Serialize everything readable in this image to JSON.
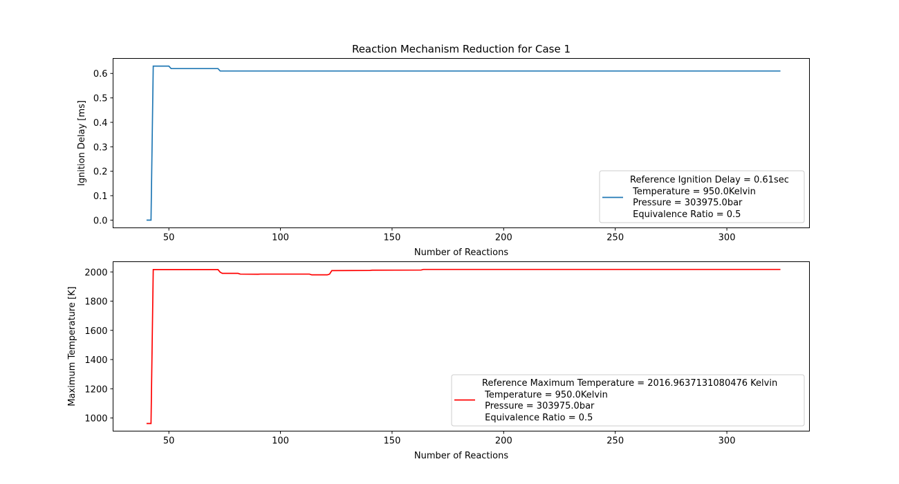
{
  "chart_data": [
    {
      "type": "line",
      "title": "Reaction Mechanism Reduction for Case 1",
      "xlabel": "Number of Reactions",
      "ylabel": "Ignition Delay [ms]",
      "xlim": [
        25,
        337
      ],
      "ylim": [
        -0.0315,
        0.6615
      ],
      "xticks": [
        50,
        100,
        150,
        200,
        250,
        300
      ],
      "yticks": [
        0.0,
        0.1,
        0.2,
        0.3,
        0.4,
        0.5,
        0.6
      ],
      "ytick_labels": [
        "0.0",
        "0.1",
        "0.2",
        "0.3",
        "0.4",
        "0.5",
        "0.6"
      ],
      "grid": false,
      "legend_position": "lower-right",
      "series": [
        {
          "name": "Reference Ignition Delay = 0.61sec",
          "legend_lines": [
            "Reference Ignition Delay = 0.61sec",
            " Temperature = 950.0Kelvin",
            " Pressure = 303975.0bar",
            " Equivalence Ratio = 0.5"
          ],
          "color": "#1f77b4",
          "x": [
            40,
            42,
            43,
            50,
            51,
            72,
            73,
            324
          ],
          "y": [
            0.0,
            0.0,
            0.63,
            0.63,
            0.62,
            0.62,
            0.61,
            0.61
          ]
        }
      ]
    },
    {
      "type": "line",
      "title": "",
      "xlabel": "Number of Reactions",
      "ylabel": "Maximum Temperature [K]",
      "xlim": [
        25,
        337
      ],
      "ylim": [
        910,
        2070
      ],
      "xticks": [
        50,
        100,
        150,
        200,
        250,
        300
      ],
      "yticks": [
        1000,
        1200,
        1400,
        1600,
        1800,
        2000
      ],
      "ytick_labels": [
        "1000",
        "1200",
        "1400",
        "1600",
        "1800",
        "2000"
      ],
      "grid": false,
      "legend_position": "lower-right",
      "series": [
        {
          "name": "Reference Maximum Temperature = 2016.9637131080476 Kelvin",
          "legend_lines": [
            "Reference Maximum Temperature = 2016.9637131080476 Kelvin",
            " Temperature = 950.0Kelvin",
            " Pressure = 303975.0bar",
            " Equivalence Ratio = 0.5"
          ],
          "color": "#ff0000",
          "x": [
            40,
            42,
            43,
            72,
            73,
            74,
            81,
            82,
            90,
            91,
            113,
            114,
            121,
            122,
            123,
            140,
            141,
            163,
            164,
            324
          ],
          "y": [
            962,
            962,
            2016,
            2016,
            1998,
            1990,
            1990,
            1985,
            1984,
            1985,
            1985,
            1980,
            1980,
            1985,
            2009,
            2010,
            2012,
            2013,
            2017,
            2017
          ]
        }
      ]
    }
  ]
}
